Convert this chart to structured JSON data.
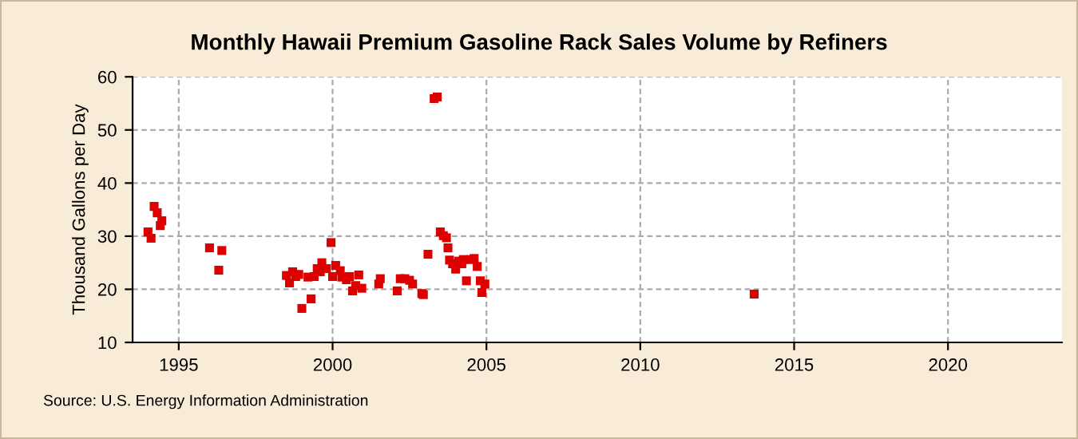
{
  "chart_data": {
    "type": "scatter",
    "title": "Monthly Hawaii Premium Gasoline Rack Sales Volume by Refiners",
    "ylabel": "Thousand Gallons per Day",
    "annotations": [
      "Source: U.S. Energy Information Administration"
    ],
    "series": [
      {
        "color": "#dd0000",
        "x": [
          1994.0,
          1994.1,
          1994.2,
          1994.3,
          1994.4,
          1994.45,
          1996.0,
          1996.3,
          1996.4,
          1998.5,
          1998.6,
          1998.7,
          1998.8,
          1998.9,
          1999.0,
          1999.2,
          1999.3,
          1999.4,
          1999.5,
          1999.6,
          1999.65,
          1999.8,
          1999.95,
          2000.0,
          2000.1,
          2000.25,
          2000.3,
          2000.45,
          2000.55,
          2000.65,
          2000.75,
          2000.85,
          2000.95,
          2001.5,
          2001.55,
          2002.1,
          2002.2,
          2002.35,
          2002.5,
          2002.6,
          2002.9,
          2002.95,
          2003.1,
          2003.3,
          2003.4,
          2003.5,
          2003.6,
          2003.7,
          2003.75,
          2003.8,
          2003.9,
          2004.0,
          2004.1,
          2004.2,
          2004.25,
          2004.35,
          2004.5,
          2004.6,
          2004.7,
          2004.8,
          2004.85,
          2004.95,
          2013.7
        ],
        "values": [
          30.8,
          29.6,
          35.6,
          34.4,
          32.0,
          32.9,
          27.8,
          23.6,
          27.3,
          22.6,
          21.2,
          23.3,
          22.4,
          22.8,
          16.4,
          22.3,
          18.2,
          22.4,
          23.9,
          23.3,
          25.0,
          23.9,
          28.8,
          22.4,
          24.5,
          23.5,
          22.3,
          21.8,
          22.4,
          19.7,
          20.7,
          22.7,
          20.2,
          21.0,
          22.0,
          19.7,
          22.0,
          22.0,
          21.7,
          21.0,
          19.2,
          19.0,
          26.6,
          55.9,
          56.2,
          30.8,
          30.1,
          29.7,
          27.8,
          25.5,
          24.8,
          23.8,
          25.3,
          24.8,
          25.6,
          21.6,
          25.6,
          25.8,
          24.3,
          21.6,
          19.4,
          21.0,
          19.1
        ]
      }
    ],
    "xlim": [
      1993.5,
      2023.7
    ],
    "xticks": [
      1995,
      2000,
      2005,
      2010,
      2015,
      2020
    ],
    "ylim": [
      10,
      60
    ],
    "yticks": [
      10,
      20,
      30,
      40,
      50,
      60
    ],
    "grid": true,
    "marker": "square",
    "legend": false
  }
}
